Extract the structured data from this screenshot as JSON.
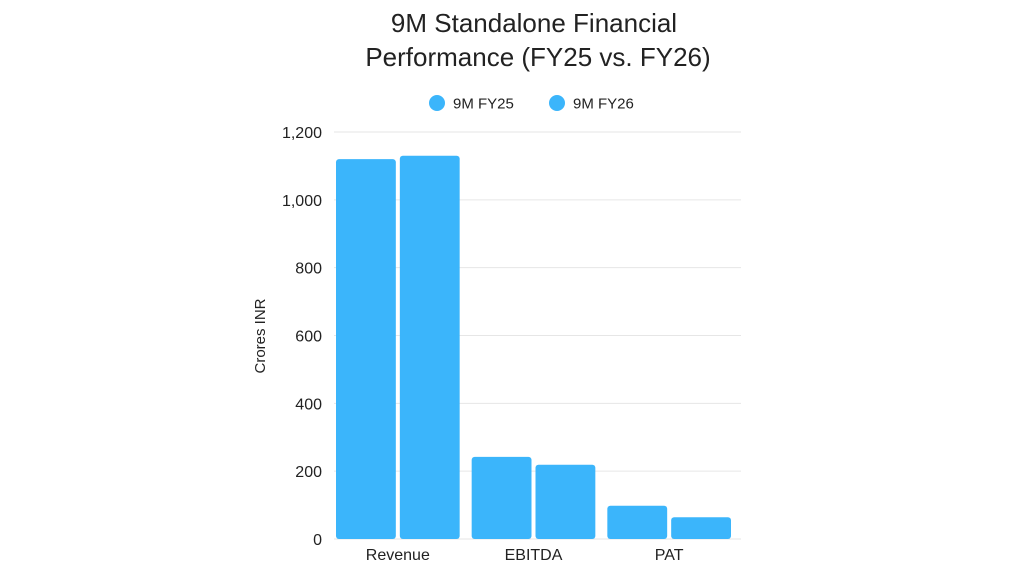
{
  "chart_data": {
    "type": "bar",
    "title_lines": [
      "9M Standalone Financial",
      "Performance (FY25 vs. FY26)"
    ],
    "xlabel": "",
    "ylabel": "Crores INR",
    "categories": [
      "Revenue",
      "EBITDA",
      "PAT"
    ],
    "series": [
      {
        "name": "9M FY25",
        "color": "#3bb5fb",
        "values": [
          1120,
          242,
          98
        ]
      },
      {
        "name": "9M FY26",
        "color": "#3bb5fb",
        "values": [
          1130,
          219,
          64
        ]
      }
    ],
    "ylim": [
      0,
      1200
    ],
    "yticks": [
      0,
      200,
      400,
      600,
      800,
      1000,
      1200
    ],
    "ytick_labels": [
      "0",
      "200",
      "400",
      "600",
      "800",
      "1,000",
      "1,200"
    ],
    "grid": true,
    "legend_position": "top"
  }
}
